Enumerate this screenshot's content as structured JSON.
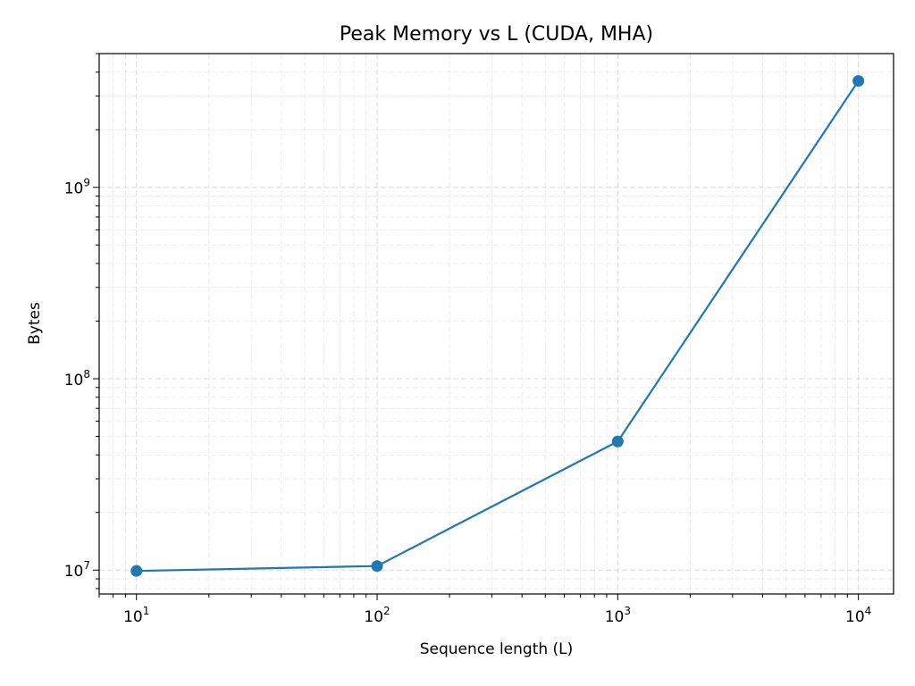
{
  "chart_data": {
    "type": "line",
    "title": "Peak Memory vs L (CUDA, MHA)",
    "xlabel": "Sequence length (L)",
    "ylabel": "Bytes",
    "xscale": "log",
    "yscale": "log",
    "xlim": [
      7,
      14000
    ],
    "ylim": [
      7500000,
      5000000000
    ],
    "grid": true,
    "grid_style": "dashed, major and minor",
    "legend": "none",
    "x_ticks": [
      {
        "base": "10",
        "exp": "1",
        "value": 10
      },
      {
        "base": "10",
        "exp": "2",
        "value": 100
      },
      {
        "base": "10",
        "exp": "3",
        "value": 1000
      },
      {
        "base": "10",
        "exp": "4",
        "value": 10000
      }
    ],
    "y_ticks": [
      {
        "base": "10",
        "exp": "7",
        "value": 10000000
      },
      {
        "base": "10",
        "exp": "8",
        "value": 100000000
      },
      {
        "base": "10",
        "exp": "9",
        "value": 1000000000
      }
    ],
    "series": [
      {
        "color": "#1f77b4",
        "marker": "circle",
        "x": [
          10,
          100,
          1000,
          10000
        ],
        "y": [
          9900000,
          10500000,
          47000000,
          3600000000
        ]
      }
    ]
  }
}
